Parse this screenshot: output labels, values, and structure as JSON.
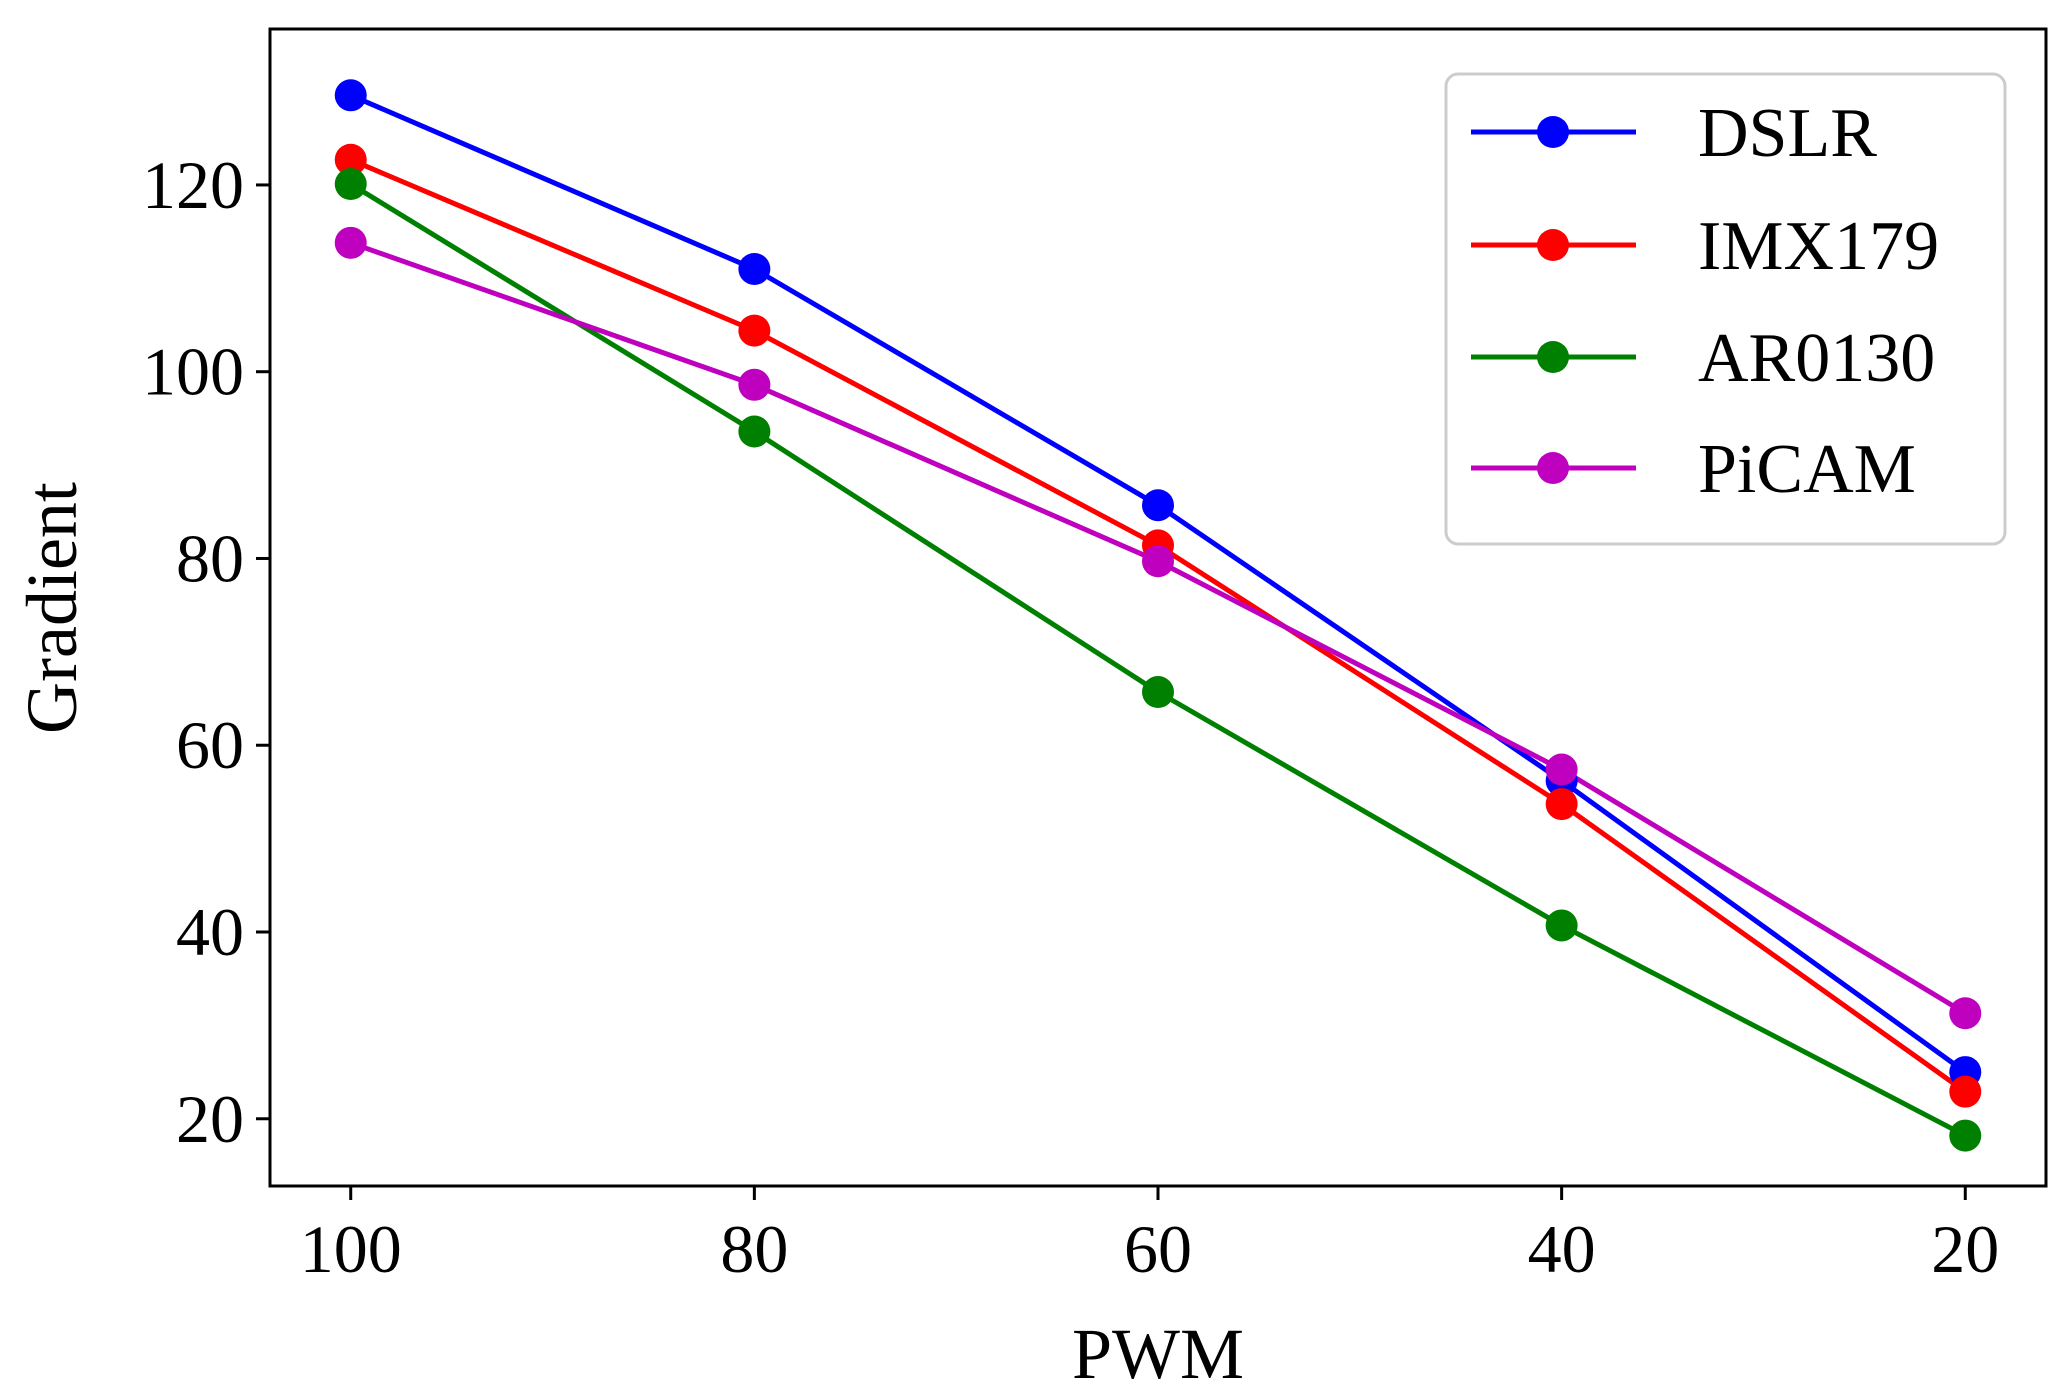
{
  "chart_data": {
    "type": "line",
    "title": "",
    "xlabel": "PWM",
    "ylabel": "Gradient",
    "x": [
      100,
      80,
      60,
      40,
      20
    ],
    "x_tick_labels": [
      "100",
      "80",
      "60",
      "40",
      "20"
    ],
    "y_ticks": [
      20,
      40,
      60,
      80,
      100,
      120
    ],
    "y_tick_labels": [
      "20",
      "40",
      "60",
      "80",
      "100",
      "120"
    ],
    "xlim": [
      104,
      16
    ],
    "ylim": [
      12.8,
      136.7
    ],
    "x_inverted": true,
    "grid": false,
    "legend_position": "top-right",
    "series": [
      {
        "name": "DSLR",
        "color": "#0000ff",
        "values": [
          129.6,
          111.0,
          85.7,
          56.2,
          25.0
        ]
      },
      {
        "name": "IMX179",
        "color": "#ff0000",
        "values": [
          122.7,
          104.4,
          81.4,
          53.7,
          22.9
        ]
      },
      {
        "name": "AR0130",
        "color": "#008000",
        "values": [
          120.1,
          93.6,
          65.7,
          40.7,
          18.2
        ]
      },
      {
        "name": "PiCAM",
        "color": "#bf00bf",
        "values": [
          113.8,
          98.6,
          79.7,
          57.4,
          31.3
        ]
      }
    ]
  }
}
